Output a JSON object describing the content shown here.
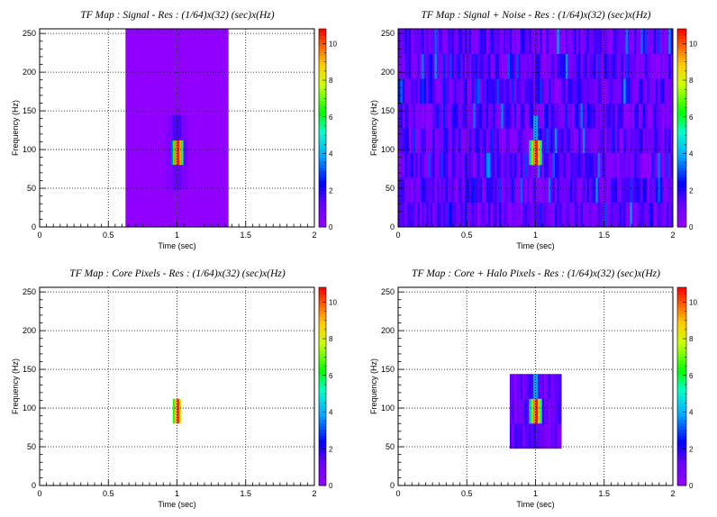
{
  "chart_data": [
    {
      "type": "heatmap",
      "title": "TF Map : Signal - Res : (1/64)x(32) (sec)x(Hz)",
      "xlabel": "Time (sec)",
      "ylabel": "Frequency (Hz)",
      "xlim": [
        0,
        2
      ],
      "ylim": [
        0,
        256
      ],
      "zlim": [
        0,
        10.8
      ],
      "x_ticks": [
        "0",
        "0.5",
        "1",
        "1.5",
        "2"
      ],
      "y_ticks": [
        "0",
        "50",
        "100",
        "150",
        "200",
        "250"
      ],
      "z_ticks": [
        "0",
        "2",
        "4",
        "6",
        "8",
        "10"
      ],
      "grid": true,
      "pattern": "signal",
      "background_region": {
        "t": [
          0.625,
          1.375
        ],
        "f": [
          0,
          256
        ]
      },
      "cells": [
        {
          "t": [
            0.922,
            0.953
          ],
          "f": [
            80,
            112
          ],
          "z": 0.9
        },
        {
          "t": [
            0.953,
            0.969
          ],
          "f": [
            80,
            112
          ],
          "z": 3.2
        },
        {
          "t": [
            0.969,
            0.984
          ],
          "f": [
            80,
            112
          ],
          "z": 6.5
        },
        {
          "t": [
            0.984,
            1.0
          ],
          "f": [
            80,
            112
          ],
          "z": 9.5
        },
        {
          "t": [
            1.0,
            1.016
          ],
          "f": [
            80,
            112
          ],
          "z": 10.5
        },
        {
          "t": [
            1.016,
            1.031
          ],
          "f": [
            80,
            112
          ],
          "z": 9.0
        },
        {
          "t": [
            1.031,
            1.047
          ],
          "f": [
            80,
            112
          ],
          "z": 5.5
        },
        {
          "t": [
            1.047,
            1.078
          ],
          "f": [
            80,
            112
          ],
          "z": 1.2
        },
        {
          "t": [
            0.922,
            1.078
          ],
          "f": [
            112,
            144
          ],
          "z": 0.7
        },
        {
          "t": [
            0.922,
            1.078
          ],
          "f": [
            48,
            80
          ],
          "z": 0.6
        },
        {
          "t": [
            0.969,
            1.031
          ],
          "f": [
            112,
            144
          ],
          "z": 1.6
        },
        {
          "t": [
            0.969,
            1.031
          ],
          "f": [
            48,
            80
          ],
          "z": 1.2
        }
      ]
    },
    {
      "type": "heatmap",
      "title": "TF Map : Signal + Noise - Res : (1/64)x(32) (sec)x(Hz)",
      "xlabel": "Time (sec)",
      "ylabel": "Frequency (Hz)",
      "xlim": [
        0,
        2
      ],
      "ylim": [
        0,
        256
      ],
      "zlim": [
        0,
        10.8
      ],
      "x_ticks": [
        "0",
        "0.5",
        "1",
        "1.5",
        "2"
      ],
      "y_ticks": [
        "0",
        "50",
        "100",
        "150",
        "200",
        "250"
      ],
      "z_ticks": [
        "0",
        "2",
        "4",
        "6",
        "8",
        "10"
      ],
      "grid": true,
      "pattern": "noise",
      "noise_z_range": [
        0.2,
        2.8
      ],
      "cells": [
        {
          "t": [
            0.953,
            0.969
          ],
          "f": [
            80,
            112
          ],
          "z": 4.5
        },
        {
          "t": [
            0.969,
            0.984
          ],
          "f": [
            80,
            112
          ],
          "z": 7.0
        },
        {
          "t": [
            0.984,
            1.0
          ],
          "f": [
            80,
            112
          ],
          "z": 9.5
        },
        {
          "t": [
            1.0,
            1.016
          ],
          "f": [
            80,
            112
          ],
          "z": 10.6
        },
        {
          "t": [
            1.016,
            1.031
          ],
          "f": [
            80,
            112
          ],
          "z": 8.0
        },
        {
          "t": [
            1.031,
            1.047
          ],
          "f": [
            80,
            112
          ],
          "z": 5.0
        },
        {
          "t": [
            0.984,
            1.016
          ],
          "f": [
            112,
            144
          ],
          "z": 3.8
        }
      ]
    },
    {
      "type": "heatmap",
      "title": "TF Map : Core Pixels - Res : (1/64)x(32) (sec)x(Hz)",
      "xlabel": "Time (sec)",
      "ylabel": "Frequency (Hz)",
      "xlim": [
        0,
        2
      ],
      "ylim": [
        0,
        256
      ],
      "zlim": [
        0,
        10.8
      ],
      "x_ticks": [
        "0",
        "0.5",
        "1",
        "1.5",
        "2"
      ],
      "y_ticks": [
        "0",
        "50",
        "100",
        "150",
        "200",
        "250"
      ],
      "z_ticks": [
        "0",
        "2",
        "4",
        "6",
        "8",
        "10"
      ],
      "grid": true,
      "pattern": "core",
      "cells": [
        {
          "t": [
            0.969,
            0.984
          ],
          "f": [
            80,
            112
          ],
          "z": 6.5
        },
        {
          "t": [
            0.984,
            1.0
          ],
          "f": [
            80,
            112
          ],
          "z": 9.0
        },
        {
          "t": [
            1.0,
            1.016
          ],
          "f": [
            80,
            112
          ],
          "z": 10.5
        },
        {
          "t": [
            1.016,
            1.031
          ],
          "f": [
            80,
            112
          ],
          "z": 8.0
        }
      ]
    },
    {
      "type": "heatmap",
      "title": "TF Map : Core + Halo Pixels - Res : (1/64)x(32) (sec)x(Hz)",
      "xlabel": "Time (sec)",
      "ylabel": "Frequency (Hz)",
      "xlim": [
        0,
        2
      ],
      "ylim": [
        0,
        256
      ],
      "zlim": [
        0,
        10.8
      ],
      "x_ticks": [
        "0",
        "0.5",
        "1",
        "1.5",
        "2"
      ],
      "y_ticks": [
        "0",
        "50",
        "100",
        "150",
        "200",
        "250"
      ],
      "z_ticks": [
        "0",
        "2",
        "4",
        "6",
        "8",
        "10"
      ],
      "grid": true,
      "pattern": "halo",
      "halo_region": {
        "t": [
          0.8125,
          1.1875
        ],
        "f": [
          48,
          144
        ]
      },
      "noise_z_range": [
        0.3,
        2.6
      ],
      "cells": [
        {
          "t": [
            0.953,
            0.969
          ],
          "f": [
            80,
            112
          ],
          "z": 4.5
        },
        {
          "t": [
            0.969,
            0.984
          ],
          "f": [
            80,
            112
          ],
          "z": 7.0
        },
        {
          "t": [
            0.984,
            1.0
          ],
          "f": [
            80,
            112
          ],
          "z": 9.5
        },
        {
          "t": [
            1.0,
            1.016
          ],
          "f": [
            80,
            112
          ],
          "z": 10.6
        },
        {
          "t": [
            1.016,
            1.031
          ],
          "f": [
            80,
            112
          ],
          "z": 8.0
        },
        {
          "t": [
            1.031,
            1.047
          ],
          "f": [
            80,
            112
          ],
          "z": 5.0
        },
        {
          "t": [
            0.984,
            1.016
          ],
          "f": [
            112,
            144
          ],
          "z": 3.8
        }
      ]
    }
  ]
}
